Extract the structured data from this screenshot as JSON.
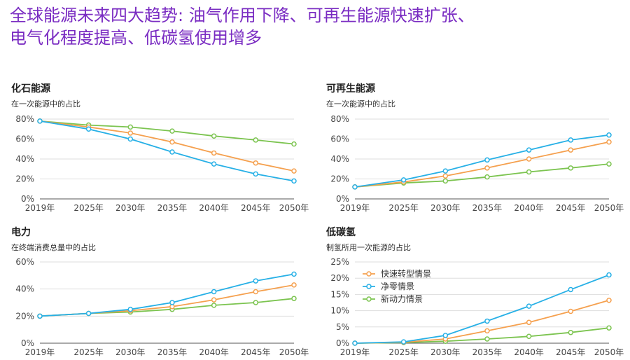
{
  "title_line1": "全球能源未来四大趋势: 油气作用下降、可再生能源快速扩张、",
  "title_line2": "电气化程度提高、低碳氢使用增多",
  "colors": {
    "title": "#7a2cc2",
    "rapid": "#f5a04e",
    "netzero": "#27b0e6",
    "momentum": "#7cc450",
    "grid": "#dddddd",
    "axis": "#555555"
  },
  "chart_data": [
    {
      "type": "line",
      "title": "化石能源",
      "subtitle": "在一次能源中的占比",
      "x": [
        "2019年",
        "2025年",
        "2030年",
        "2035年",
        "2040年",
        "2045年",
        "2050年"
      ],
      "yticks": [
        "0%",
        "20%",
        "40%",
        "60%",
        "80%"
      ],
      "ylim": [
        0,
        80
      ],
      "series": [
        {
          "key": "rapid",
          "values": [
            78,
            72,
            66,
            57,
            46,
            36,
            28
          ]
        },
        {
          "key": "netzero",
          "values": [
            78,
            70,
            60,
            47,
            35,
            25,
            18
          ]
        },
        {
          "key": "momentum",
          "values": [
            78,
            74,
            72,
            68,
            63,
            59,
            55
          ]
        }
      ]
    },
    {
      "type": "line",
      "title": "可再生能源",
      "subtitle": "在一次能源中的占比",
      "x": [
        "2019年",
        "2025年",
        "2030年",
        "2035年",
        "2040年",
        "2045年",
        "2050年"
      ],
      "yticks": [
        "0%",
        "20%",
        "40%",
        "60%",
        "80%"
      ],
      "ylim": [
        0,
        80
      ],
      "series": [
        {
          "key": "rapid",
          "values": [
            12,
            17,
            23,
            31,
            40,
            49,
            57
          ]
        },
        {
          "key": "netzero",
          "values": [
            12,
            19,
            28,
            39,
            49,
            59,
            64
          ]
        },
        {
          "key": "momentum",
          "values": [
            12,
            16,
            18,
            22,
            27,
            31,
            35
          ]
        }
      ]
    },
    {
      "type": "line",
      "title": "电力",
      "subtitle": "在终端消费总量中的占比",
      "x": [
        "2019年",
        "2025年",
        "2030年",
        "2035年",
        "2040年",
        "2045年",
        "2050年"
      ],
      "yticks": [
        "0%",
        "20%",
        "40%",
        "60%"
      ],
      "ylim": [
        0,
        60
      ],
      "series": [
        {
          "key": "rapid",
          "values": [
            20,
            22,
            24,
            27,
            32,
            38,
            43
          ]
        },
        {
          "key": "netzero",
          "values": [
            20,
            22,
            25,
            30,
            38,
            46,
            51
          ]
        },
        {
          "key": "momentum",
          "values": [
            20,
            22,
            23,
            25,
            28,
            30,
            33
          ]
        }
      ]
    },
    {
      "type": "line",
      "title": "低碳氢",
      "subtitle": "制氢所用一次能源的占比",
      "x": [
        "2019年",
        "2025年",
        "2030年",
        "2035年",
        "2040年",
        "2045年",
        "2050年"
      ],
      "yticks": [
        "0%",
        "5%",
        "10%",
        "15%",
        "20%",
        "25%"
      ],
      "ylim": [
        0,
        25
      ],
      "legend": [
        "快速转型情景",
        "净零情景",
        "新动力情景"
      ],
      "series": [
        {
          "key": "rapid",
          "name": "快速转型情景",
          "values": [
            0,
            0.3,
            1.3,
            3.8,
            6.4,
            9.8,
            13.2
          ]
        },
        {
          "key": "netzero",
          "name": "净零情景",
          "values": [
            0,
            0.4,
            2.4,
            6.8,
            11.4,
            16.5,
            21.0
          ]
        },
        {
          "key": "momentum",
          "name": "新动力情景",
          "values": [
            0,
            0.2,
            0.6,
            1.3,
            2.1,
            3.3,
            4.7
          ]
        }
      ]
    }
  ]
}
